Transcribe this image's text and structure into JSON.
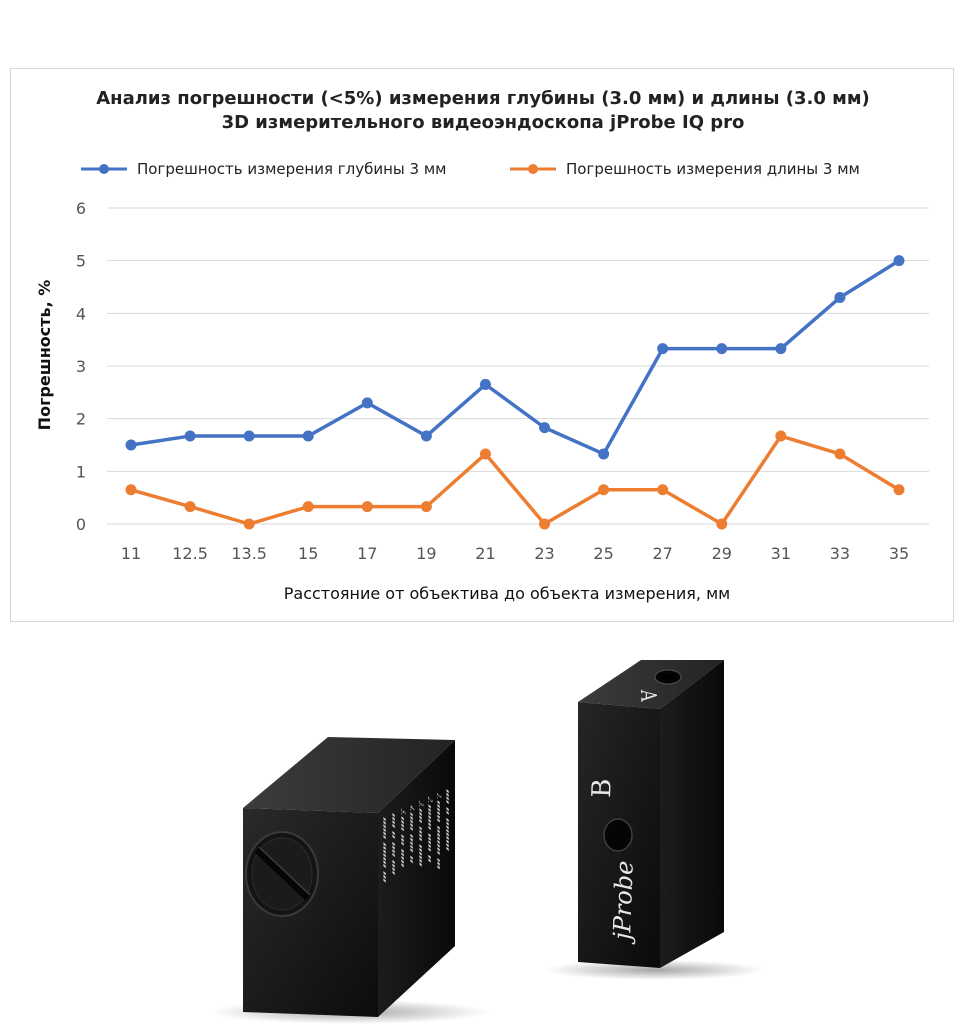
{
  "chart_data": {
    "type": "line",
    "title_line1": "Анализ погрешности (<5%) измерения глубины (3.0 мм) и длины (3.0 мм)",
    "title_line2": "3D измерительного видеоэндоскопа jProbe IQ pro",
    "xlabel": "Расстояние от объектива до объекта измерения, мм",
    "ylabel": "Погрешность, %",
    "ylim": [
      0,
      6
    ],
    "yticks": [
      0,
      1,
      2,
      3,
      4,
      5,
      6
    ],
    "categories": [
      "11",
      "12.5",
      "13.5",
      "15",
      "17",
      "19",
      "21",
      "23",
      "25",
      "27",
      "29",
      "31",
      "33",
      "35"
    ],
    "grid": true,
    "legend_position": "top",
    "series": [
      {
        "name": "Погрешность измерения глубины 3 мм",
        "color": "#4472C4",
        "values": [
          1.5,
          1.67,
          1.67,
          1.67,
          2.3,
          1.67,
          2.65,
          1.83,
          1.33,
          3.33,
          3.33,
          3.33,
          4.3,
          5.0
        ]
      },
      {
        "name": "Погрешность измерения длины 3 мм",
        "color": "#ED7D31",
        "values": [
          0.65,
          0.33,
          0.0,
          0.33,
          0.33,
          0.33,
          1.33,
          0.0,
          0.65,
          0.65,
          0.0,
          1.67,
          1.33,
          0.65
        ]
      }
    ]
  },
  "photo": {
    "block_b_brand": "jProbe",
    "block_b_letter": "B",
    "block_b_top_letter": "A"
  }
}
